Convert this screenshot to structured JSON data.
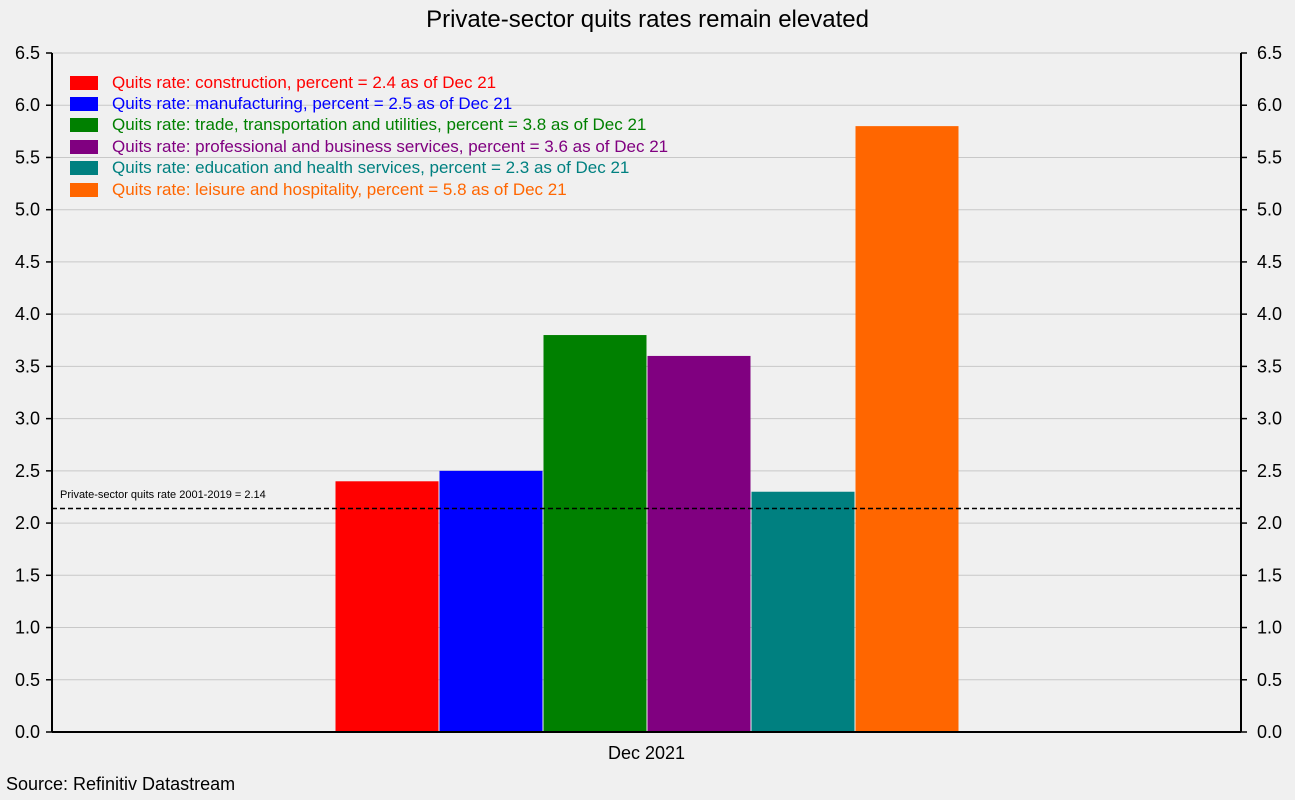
{
  "chart_data": {
    "type": "bar",
    "title": "Private-sector quits rates remain elevated",
    "categories": [
      "Dec 2021"
    ],
    "series": [
      {
        "name": "Quits rate: construction, percent = 2.4 as of Dec 21",
        "color": "#ff0000",
        "values": [
          2.4
        ]
      },
      {
        "name": "Quits rate: manufacturing, percent = 2.5 as of Dec 21",
        "color": "#0000ff",
        "values": [
          2.5
        ]
      },
      {
        "name": "Quits rate: trade, transportation and utilities, percent = 3.8 as of Dec 21",
        "color": "#008000",
        "values": [
          3.8
        ]
      },
      {
        "name": "Quits rate: professional and business services, percent = 3.6 as of Dec 21",
        "color": "#800080",
        "values": [
          3.6
        ]
      },
      {
        "name": "Quits rate: education and health services, percent = 2.3 as of Dec 21",
        "color": "#008080",
        "values": [
          2.3
        ]
      },
      {
        "name": "Quits rate: leisure and hospitality, percent = 5.8 as of Dec 21",
        "color": "#ff6600",
        "values": [
          5.8
        ]
      }
    ],
    "reference_line": {
      "label": "Private-sector quits rate 2001-2019 = 2.14",
      "value": 2.14
    },
    "ylim": [
      0,
      6.5
    ],
    "yticks": [
      "0.0",
      "0.5",
      "1.0",
      "1.5",
      "2.0",
      "2.5",
      "3.0",
      "3.5",
      "4.0",
      "4.5",
      "5.0",
      "5.5",
      "6.0",
      "6.5"
    ],
    "grid": true,
    "legend_position": "top-left",
    "source": "Source: Refinitiv Datastream"
  }
}
